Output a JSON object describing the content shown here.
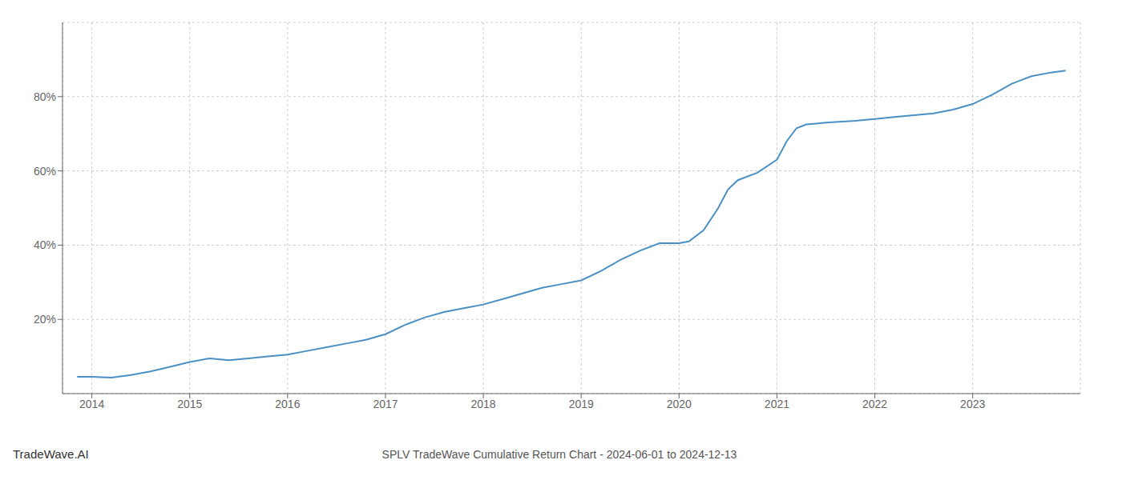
{
  "chart_data": {
    "type": "line",
    "title": "SPLV TradeWave Cumulative Return Chart - 2024-06-01 to 2024-12-13",
    "annotations": [
      "TradeWave.AI"
    ],
    "x": [
      2013.85,
      2014,
      2014.2,
      2014.4,
      2014.6,
      2014.8,
      2015,
      2015.2,
      2015.4,
      2015.6,
      2015.8,
      2016,
      2016.2,
      2016.4,
      2016.6,
      2016.8,
      2017,
      2017.2,
      2017.4,
      2017.6,
      2017.8,
      2018,
      2018.2,
      2018.4,
      2018.6,
      2018.8,
      2019,
      2019.2,
      2019.4,
      2019.6,
      2019.8,
      2020,
      2020.1,
      2020.25,
      2020.4,
      2020.5,
      2020.6,
      2020.8,
      2021,
      2021.1,
      2021.2,
      2021.3,
      2021.5,
      2021.8,
      2022,
      2022.2,
      2022.4,
      2022.6,
      2022.8,
      2023,
      2023.2,
      2023.4,
      2023.6,
      2023.8,
      2023.95
    ],
    "values": [
      4.5,
      4.5,
      4.3,
      5.0,
      6.0,
      7.2,
      8.5,
      9.5,
      9.0,
      9.5,
      10.0,
      10.5,
      11.5,
      12.5,
      13.5,
      14.5,
      16.0,
      18.5,
      20.5,
      22.0,
      23.0,
      24.0,
      25.5,
      27.0,
      28.5,
      29.5,
      30.5,
      33.0,
      36.0,
      38.5,
      40.5,
      40.5,
      41.0,
      44.0,
      50.0,
      55.0,
      57.5,
      59.5,
      63.0,
      68.0,
      71.5,
      72.5,
      73.0,
      73.5,
      74.0,
      74.5,
      75.0,
      75.5,
      76.5,
      78.0,
      80.5,
      83.5,
      85.5,
      86.5,
      87.0
    ],
    "color": "#4a90c4",
    "xlim": [
      2013.7,
      2024.1
    ],
    "xticks": [
      2014,
      2015,
      2016,
      2017,
      2018,
      2019,
      2020,
      2021,
      2022,
      2023
    ],
    "ylim": [
      0,
      100
    ],
    "yticks": [
      {
        "value": 20,
        "label": "20%"
      },
      {
        "value": 40,
        "label": "40%"
      },
      {
        "value": 60,
        "label": "60%"
      },
      {
        "value": 80,
        "label": "80%"
      }
    ],
    "grid": true
  }
}
